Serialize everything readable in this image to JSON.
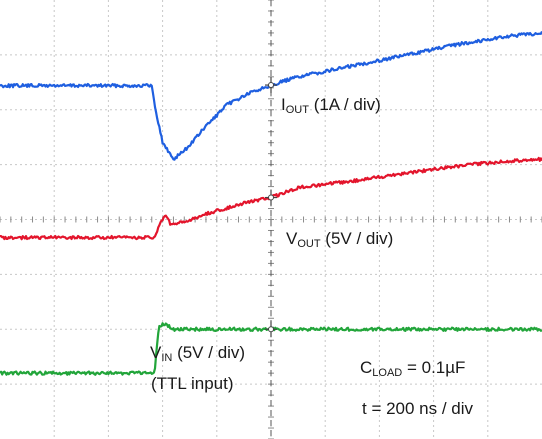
{
  "chart_data": {
    "type": "line",
    "title": "",
    "xlabel": "",
    "ylabel": "",
    "grid": true,
    "x_divisions": 10,
    "y_divisions": 8,
    "time_per_div": "200 ns",
    "xlim": [
      0,
      10
    ],
    "trigger_x_div": 5,
    "series": [
      {
        "key": "iout",
        "color": "#1f5fe0",
        "points": [
          [
            0,
            1.56
          ],
          [
            2.8,
            1.56
          ],
          [
            2.85,
            1.9
          ],
          [
            3.0,
            2.6
          ],
          [
            3.2,
            2.9
          ],
          [
            3.45,
            2.7
          ],
          [
            3.8,
            2.3
          ],
          [
            4.2,
            1.9
          ],
          [
            4.6,
            1.7
          ],
          [
            5.0,
            1.55
          ],
          [
            5.5,
            1.4
          ],
          [
            6.5,
            1.2
          ],
          [
            7.5,
            1.0
          ],
          [
            8.5,
            0.8
          ],
          [
            9.3,
            0.67
          ],
          [
            10,
            0.6
          ]
        ]
      },
      {
        "key": "vout",
        "color": "#e3152c",
        "points": [
          [
            0,
            4.33
          ],
          [
            2.85,
            4.33
          ],
          [
            2.95,
            4.1
          ],
          [
            3.05,
            3.9
          ],
          [
            3.15,
            4.1
          ],
          [
            3.4,
            4.05
          ],
          [
            3.8,
            3.9
          ],
          [
            4.5,
            3.7
          ],
          [
            5.0,
            3.6
          ],
          [
            5.5,
            3.42
          ],
          [
            6.5,
            3.3
          ],
          [
            7.5,
            3.15
          ],
          [
            8.5,
            3.02
          ],
          [
            9.3,
            2.94
          ],
          [
            10,
            2.9
          ]
        ]
      },
      {
        "key": "vin",
        "color": "#22a53a",
        "points": [
          [
            0,
            6.8
          ],
          [
            2.85,
            6.8
          ],
          [
            2.93,
            5.95
          ],
          [
            3.05,
            5.9
          ],
          [
            3.2,
            6.0
          ],
          [
            10,
            6.0
          ]
        ]
      }
    ],
    "labels": {
      "iout": {
        "base": "I",
        "sub": "OUT",
        "rest": " (1A / div)"
      },
      "vout": {
        "base": "V",
        "sub": "OUT",
        "rest": " (5V / div)"
      },
      "vin": {
        "base": "V",
        "sub": "IN",
        "rest": " (5V / div)",
        "line2": "(TTL input)"
      },
      "cload": {
        "base": "C",
        "sub": "LOAD",
        "rest": " = 0.1µF"
      },
      "timebase": "t = 200 ns / div"
    },
    "colors": {
      "grid": "#c8c8c8",
      "grid_border": "#8a8a8a",
      "cursor": "#555555"
    }
  }
}
